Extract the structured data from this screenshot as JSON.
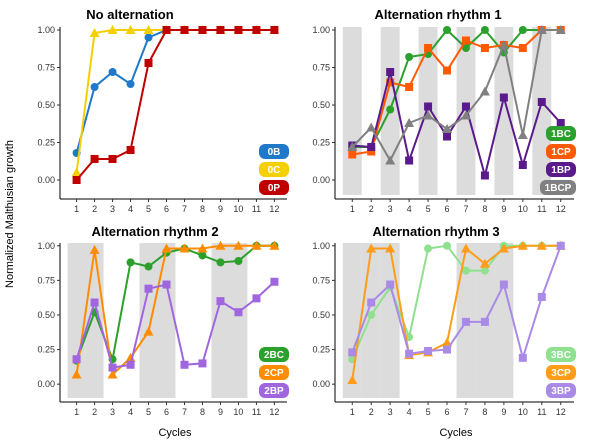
{
  "figure": {
    "ylabel": "Normalized Malthusian growth",
    "xlabel": "Cycles"
  },
  "chart_data": [
    {
      "type": "line",
      "title": "No alternation",
      "x": [
        1,
        2,
        3,
        4,
        5,
        6,
        7,
        8,
        9,
        10,
        11,
        12
      ],
      "xticks": [
        "1",
        "2",
        "3",
        "4",
        "5",
        "6",
        "7",
        "8",
        "9",
        "10",
        "11",
        "12"
      ],
      "ylim": [
        -0.1,
        1.02
      ],
      "yticks": [
        "0.00",
        "0.25",
        "0.50",
        "0.75",
        "1.00"
      ],
      "shaded_cycles": [],
      "legend_position": "bottom-right",
      "series": [
        {
          "name": "0B",
          "color": "#1f78c8",
          "marker": "circle",
          "values": [
            0.18,
            0.62,
            0.72,
            0.64,
            0.95,
            1.0,
            1.0,
            1.0,
            1.0,
            1.0,
            1.0,
            1.0
          ]
        },
        {
          "name": "0C",
          "color": "#f5d000",
          "marker": "triangle",
          "values": [
            0.05,
            0.98,
            1.0,
            1.0,
            1.0,
            1.0,
            1.0,
            1.0,
            1.0,
            1.0,
            1.0,
            1.0
          ]
        },
        {
          "name": "0P",
          "color": "#c00000",
          "marker": "square",
          "values": [
            0.0,
            0.14,
            0.14,
            0.2,
            0.78,
            1.0,
            1.0,
            1.0,
            1.0,
            1.0,
            1.0,
            1.0
          ]
        }
      ]
    },
    {
      "type": "line",
      "title": "Alternation rhythm 1",
      "x": [
        1,
        2,
        3,
        4,
        5,
        6,
        7,
        8,
        9,
        10,
        11,
        12
      ],
      "xticks": [
        "1",
        "2",
        "3",
        "4",
        "5",
        "6",
        "7",
        "8",
        "9",
        "10",
        "11",
        "12"
      ],
      "ylim": [
        -0.1,
        1.02
      ],
      "yticks": [
        "0.00",
        "0.25",
        "0.50",
        "0.75",
        "1.00"
      ],
      "shaded_cycles": [
        1,
        3,
        5,
        7,
        9,
        11
      ],
      "legend_position": "bottom-right",
      "series": [
        {
          "name": "1BC",
          "color": "#2ca02c",
          "marker": "circle",
          "values": [
            0.22,
            0.22,
            0.47,
            0.82,
            0.84,
            1.0,
            0.88,
            1.0,
            0.85,
            1.0,
            1.0,
            1.0
          ]
        },
        {
          "name": "1CP",
          "color": "#ff5a00",
          "marker": "square",
          "values": [
            0.17,
            0.19,
            0.65,
            0.62,
            0.88,
            0.73,
            0.93,
            0.88,
            0.9,
            0.88,
            1.0,
            1.0
          ]
        },
        {
          "name": "1BP",
          "color": "#5a1a8c",
          "marker": "square",
          "values": [
            0.23,
            0.22,
            0.72,
            0.13,
            0.49,
            0.29,
            0.49,
            0.03,
            0.55,
            0.1,
            0.52,
            0.38
          ]
        },
        {
          "name": "1BCP",
          "color": "#808080",
          "marker": "triangle",
          "values": [
            0.22,
            0.35,
            0.13,
            0.38,
            0.43,
            0.34,
            0.43,
            0.59,
            0.9,
            0.3,
            1.0,
            1.0
          ]
        }
      ]
    },
    {
      "type": "line",
      "title": "Alternation rhythm 2",
      "x": [
        1,
        2,
        3,
        4,
        5,
        6,
        7,
        8,
        9,
        10,
        11,
        12
      ],
      "xticks": [
        "1",
        "2",
        "3",
        "4",
        "5",
        "6",
        "7",
        "8",
        "9",
        "10",
        "11",
        "12"
      ],
      "ylim": [
        -0.1,
        1.02
      ],
      "yticks": [
        "0.00",
        "0.25",
        "0.50",
        "0.75",
        "1.00"
      ],
      "shaded_cycles": [
        1,
        2,
        5,
        6,
        9,
        10
      ],
      "legend_position": "bottom-right",
      "series": [
        {
          "name": "2BC",
          "color": "#2ca02c",
          "marker": "circle",
          "values": [
            0.17,
            0.52,
            0.18,
            0.88,
            0.85,
            0.95,
            0.98,
            0.93,
            0.88,
            0.89,
            1.0,
            1.0
          ]
        },
        {
          "name": "2CP",
          "color": "#ff8c00",
          "marker": "triangle",
          "values": [
            0.07,
            0.97,
            0.07,
            0.19,
            0.38,
            0.98,
            0.98,
            0.98,
            1.0,
            1.0,
            1.0,
            1.0
          ]
        },
        {
          "name": "2BP",
          "color": "#a066e0",
          "marker": "square",
          "values": [
            0.18,
            0.59,
            0.12,
            0.14,
            0.69,
            0.72,
            0.14,
            0.15,
            0.6,
            0.52,
            0.62,
            0.74
          ]
        }
      ]
    },
    {
      "type": "line",
      "title": "Alternation rhythm 3",
      "x": [
        1,
        2,
        3,
        4,
        5,
        6,
        7,
        8,
        9,
        10,
        11,
        12
      ],
      "xticks": [
        "1",
        "2",
        "3",
        "4",
        "5",
        "6",
        "7",
        "8",
        "9",
        "10",
        "11",
        "12"
      ],
      "ylim": [
        -0.1,
        1.02
      ],
      "yticks": [
        "0.00",
        "0.25",
        "0.50",
        "0.75",
        "1.00"
      ],
      "shaded_cycles": [
        1,
        2,
        3,
        7,
        8,
        9
      ],
      "legend_position": "bottom-right",
      "series": [
        {
          "name": "3BC",
          "color": "#8fe08f",
          "marker": "circle",
          "values": [
            0.18,
            0.5,
            0.7,
            0.34,
            0.98,
            1.0,
            0.82,
            0.82,
            1.0,
            1.0,
            1.0,
            1.0
          ]
        },
        {
          "name": "3CP",
          "color": "#ff9d1a",
          "marker": "triangle",
          "values": [
            0.03,
            0.98,
            0.98,
            0.21,
            0.23,
            0.3,
            0.98,
            0.87,
            0.98,
            1.0,
            1.0,
            1.0
          ]
        },
        {
          "name": "3BP",
          "color": "#a98ae6",
          "marker": "square",
          "values": [
            0.23,
            0.59,
            0.72,
            0.22,
            0.24,
            0.25,
            0.45,
            0.45,
            0.72,
            0.19,
            0.63,
            1.0
          ]
        }
      ]
    }
  ]
}
